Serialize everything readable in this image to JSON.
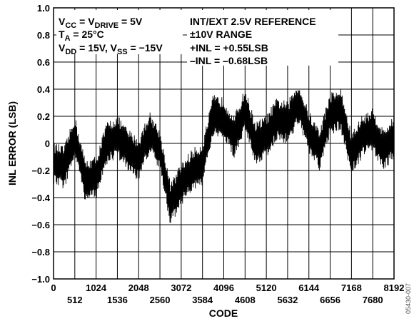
{
  "chart_data": {
    "type": "line",
    "xlabel": "CODE",
    "ylabel": "INL ERROR (LSB)",
    "xlim": [
      0,
      8192
    ],
    "ylim": [
      -1.0,
      1.0
    ],
    "grid": true,
    "x_ticks_row1": [
      "0",
      "1024",
      "2048",
      "3072",
      "4096",
      "5120",
      "6144",
      "7168",
      "8192"
    ],
    "x_ticks_row2": [
      "512",
      "1536",
      "2560",
      "3584",
      "4608",
      "5632",
      "6656",
      "7680"
    ],
    "y_ticks": [
      "1.0",
      "0.8",
      "0.6",
      "0.4",
      "0.2",
      "0",
      "−0.2",
      "−0.4",
      "−0.6",
      "−0.8",
      "−1.0"
    ],
    "annotations": {
      "vcc": {
        "main": "V",
        "sub1": "CC",
        "mid": " = V",
        "sub2": "DRIVE",
        "tail": " = 5V"
      },
      "ta": {
        "main": "T",
        "sub1": "A",
        "tail": " = 25°C"
      },
      "vdd": {
        "main": "V",
        "sub1": "DD",
        "mid": " = 15V, V",
        "sub2": "SS",
        "tail": " = −15V"
      },
      "ref": "INT/EXT 2.5V REFERENCE",
      "range": "±10V RANGE",
      "inl_pos": "+INL = +0.55LSB",
      "inl_neg": "–INL = –0.68LSB"
    },
    "figure_id": "05430-007",
    "series": [
      {
        "values": [
          [
            0,
            -0.15
          ],
          [
            256,
            -0.18
          ],
          [
            512,
            0.05
          ],
          [
            768,
            -0.28
          ],
          [
            1024,
            -0.25
          ],
          [
            1280,
            0.0
          ],
          [
            1536,
            0.05
          ],
          [
            1792,
            -0.05
          ],
          [
            2048,
            -0.12
          ],
          [
            2304,
            0.08
          ],
          [
            2560,
            -0.05
          ],
          [
            2816,
            -0.45
          ],
          [
            3072,
            -0.3
          ],
          [
            3328,
            -0.2
          ],
          [
            3584,
            -0.15
          ],
          [
            3840,
            0.2
          ],
          [
            4096,
            0.18
          ],
          [
            4352,
            0.05
          ],
          [
            4608,
            0.25
          ],
          [
            4864,
            0.0
          ],
          [
            5120,
            0.05
          ],
          [
            5376,
            0.18
          ],
          [
            5632,
            0.15
          ],
          [
            5888,
            0.3
          ],
          [
            6144,
            0.08
          ],
          [
            6400,
            -0.05
          ],
          [
            6656,
            0.22
          ],
          [
            6912,
            0.25
          ],
          [
            7168,
            -0.08
          ],
          [
            7424,
            0.05
          ],
          [
            7680,
            0.1
          ],
          [
            7936,
            -0.05
          ],
          [
            8192,
            0.05
          ]
        ],
        "envelope": 0.16
      }
    ]
  }
}
